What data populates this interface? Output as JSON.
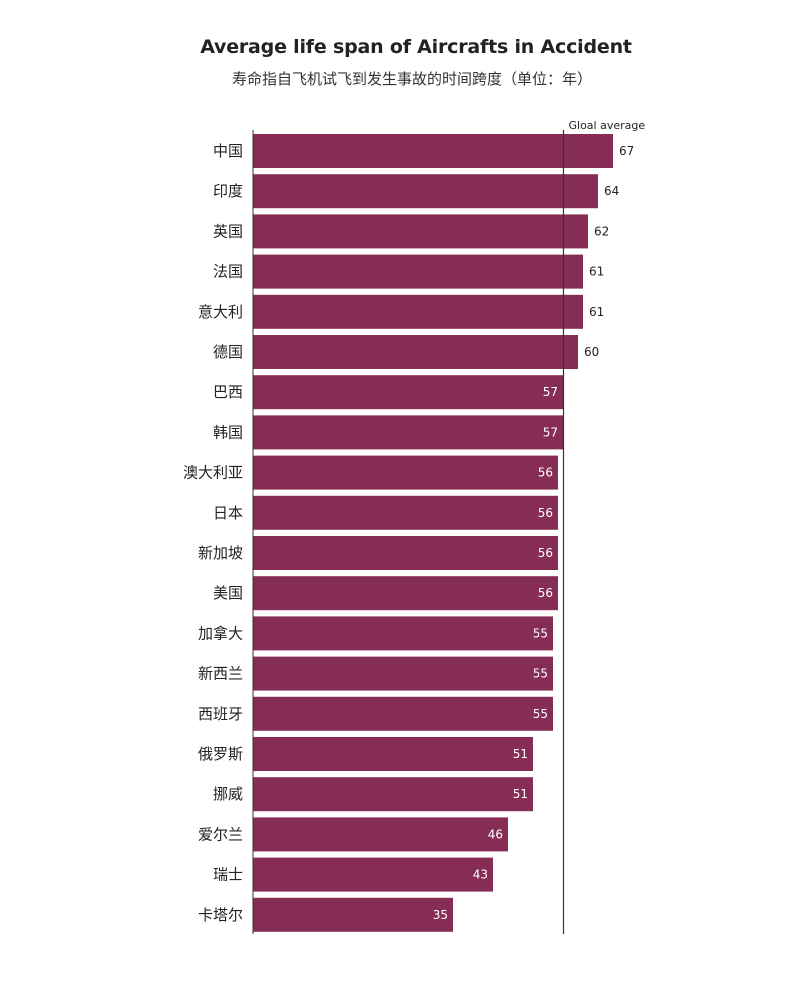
{
  "chart_data": {
    "type": "bar",
    "orientation": "horizontal",
    "title": "Average life span of Aircrafts in Accident",
    "subtitle": "寿命指自飞机试飞到发生事故的时间跨度（单位：年）",
    "categories": [
      "中国",
      "印度",
      "英国",
      "法国",
      "意大利",
      "德国",
      "巴西",
      "韩国",
      "澳大利亚",
      "日本",
      "新加坡",
      "美国",
      "加拿大",
      "新西兰",
      "西班牙",
      "俄罗斯",
      "挪威",
      "爱尔兰",
      "瑞士",
      "卡塔尔"
    ],
    "values": [
      67,
      64,
      62,
      61,
      61,
      60,
      57,
      57,
      56,
      56,
      56,
      56,
      55,
      55,
      55,
      51,
      51,
      46,
      43,
      35
    ],
    "reference_line": {
      "label": "Gloal average",
      "value": 57
    },
    "xlim": [
      -5,
      75
    ],
    "grid": false,
    "colors": {
      "bar": "#862d55",
      "reference_line": "#333333",
      "label_inside": "#ffffff",
      "label_outside": "#222222"
    }
  }
}
